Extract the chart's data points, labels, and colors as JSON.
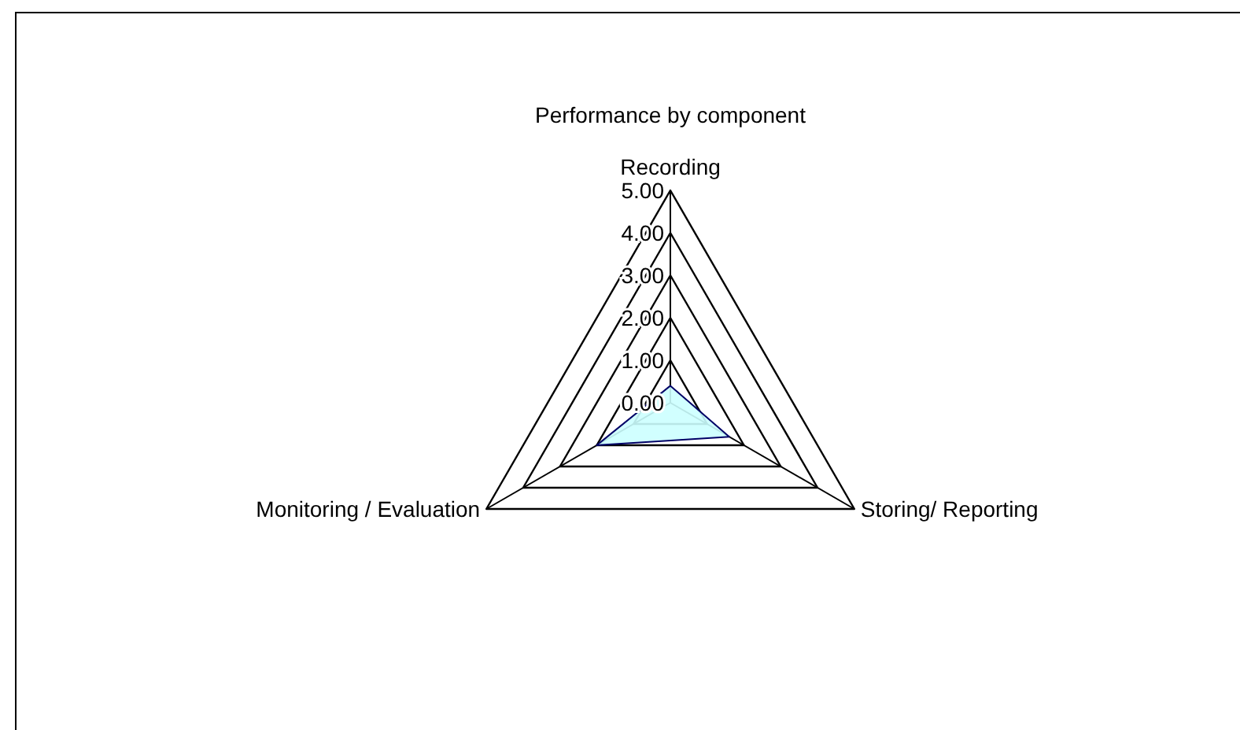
{
  "chart_data": {
    "type": "radar",
    "title": "Performance by component",
    "categories": [
      "Recording",
      "Storing/ Reporting",
      "Monitoring / Evaluation"
    ],
    "series": [
      {
        "color": "#ccffff",
        "values": [
          0.4,
          1.6,
          2.0
        ]
      }
    ],
    "ylim": [
      0,
      5
    ],
    "yticks": [
      {
        "value": 0,
        "label": "0.00"
      },
      {
        "value": 1,
        "label": "1.00"
      },
      {
        "value": 2,
        "label": "2.00"
      },
      {
        "value": 3,
        "label": "3.00"
      },
      {
        "value": 4,
        "label": "4.00"
      },
      {
        "value": 5,
        "label": "5.00"
      }
    ],
    "grid": true,
    "marker": "none"
  }
}
